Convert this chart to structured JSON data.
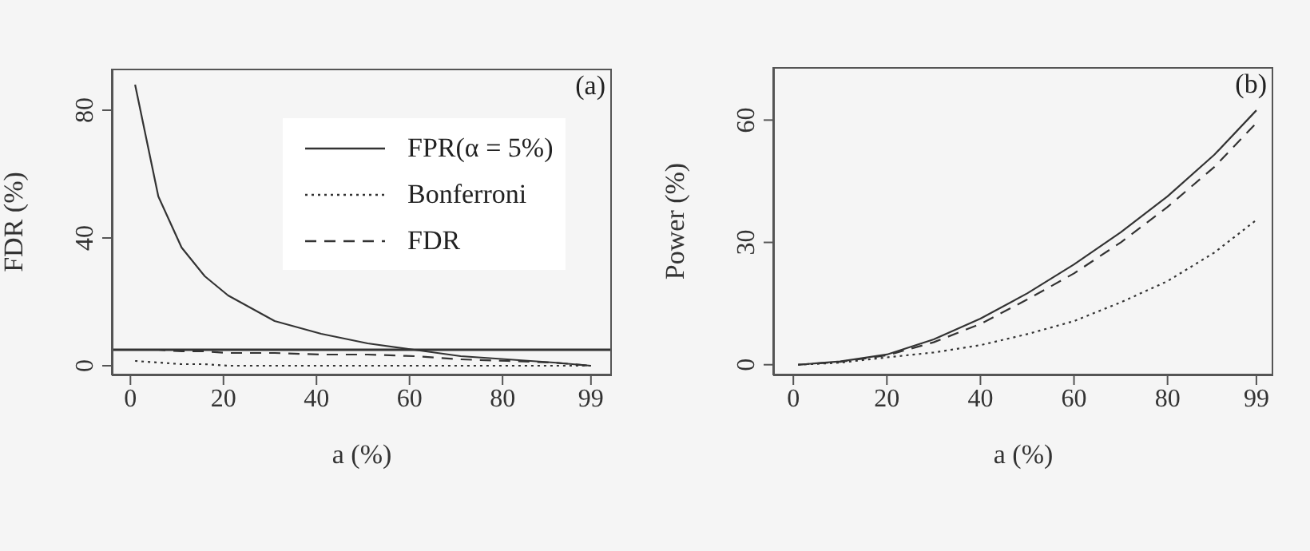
{
  "chart_data": [
    {
      "type": "line",
      "xlabel": "a (%)",
      "ylabel": "FDR (%)",
      "x": [
        1,
        6,
        11,
        16,
        21,
        26,
        31,
        41,
        51,
        61,
        71,
        81,
        91,
        99
      ],
      "series": [
        {
          "name": "FPR(α = 5%)",
          "color": "#333333",
          "line_style": "solid",
          "values": [
            88,
            53,
            37,
            28,
            22,
            18,
            14,
            10,
            7,
            5,
            3,
            2,
            1,
            0
          ]
        },
        {
          "name": "Bonferroni",
          "color": "#333333",
          "line_style": "dotted",
          "values": [
            1.5,
            1,
            0.5,
            0.5,
            0,
            0,
            0,
            0,
            0,
            0,
            0,
            0,
            0,
            0
          ]
        },
        {
          "name": "FDR",
          "color": "#333333",
          "line_style": "dashed",
          "values": [
            5,
            5,
            4.5,
            4.5,
            4,
            4,
            4,
            3.5,
            3.5,
            3,
            2,
            1.5,
            1,
            0
          ]
        }
      ],
      "ref_lines": [
        {
          "axis": "y",
          "value": 5,
          "color": "#333333"
        }
      ],
      "xlim": [
        -4,
        103.5
      ],
      "xticks": [
        0,
        20,
        40,
        60,
        80,
        99
      ],
      "ylim": [
        -3,
        93
      ],
      "yticks": [
        0,
        40,
        80
      ],
      "marker": "none",
      "legend": "top right",
      "grid": false,
      "annotations": [
        "(a)"
      ]
    },
    {
      "type": "line",
      "xlabel": "a (%)",
      "ylabel": "Power (%)",
      "x": [
        1,
        10,
        20,
        30,
        40,
        50,
        60,
        70,
        80,
        90,
        99
      ],
      "series": [
        {
          "color": "#333333",
          "line_style": "solid",
          "values": [
            0,
            0.8,
            2.5,
            6.2,
            11.3,
            17.5,
            24.6,
            32.5,
            41.3,
            51.5,
            62.4
          ]
        },
        {
          "color": "#333333",
          "line_style": "dotted",
          "values": [
            0,
            0.5,
            1.8,
            3,
            4.8,
            7.5,
            10.7,
            15.3,
            20.5,
            27.5,
            35.5
          ]
        },
        {
          "color": "#333333",
          "line_style": "dashed",
          "values": [
            0,
            0.7,
            2.3,
            5.5,
            10,
            16,
            22.4,
            30,
            38.7,
            48.5,
            59.3
          ]
        }
      ],
      "xlim": [
        -4.3,
        102.6
      ],
      "xticks": [
        0,
        20,
        40,
        60,
        80,
        99
      ],
      "ylim": [
        -2.6,
        73
      ],
      "yticks": [
        0,
        30,
        60
      ],
      "marker": "none",
      "legend": false,
      "grid": false,
      "annotations": [
        "(b)"
      ]
    }
  ]
}
